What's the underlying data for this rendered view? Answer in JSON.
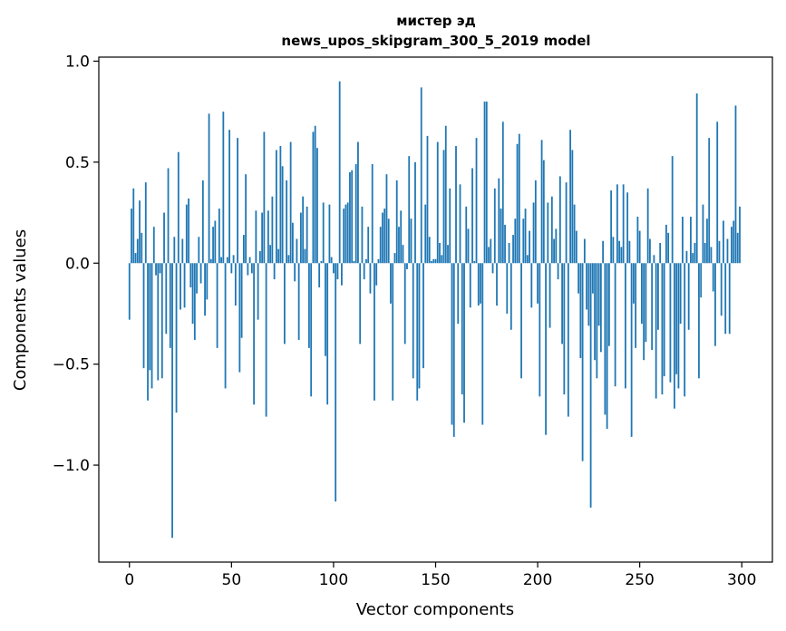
{
  "chart_data": {
    "type": "bar",
    "title": "мистер эд",
    "subtitle": "news_upos_skipgram_300_5_2019 model",
    "xlabel": "Vector components",
    "ylabel": "Components values",
    "xlim": [
      -15,
      315
    ],
    "ylim": [
      -1.48,
      1.02
    ],
    "xticks": [
      0,
      50,
      100,
      150,
      200,
      250,
      300
    ],
    "xtick_labels": [
      "0",
      "50",
      "100",
      "150",
      "200",
      "250",
      "300"
    ],
    "yticks": [
      -1.0,
      -0.5,
      0.0,
      0.5,
      1.0
    ],
    "ytick_labels": [
      "−1.0",
      "−0.5",
      "0.0",
      "0.5",
      "1.0"
    ],
    "grid": false,
    "color": "#1f77b4",
    "x": [
      0,
      1,
      2,
      3,
      4,
      5,
      6,
      7,
      8,
      9,
      10,
      11,
      12,
      13,
      14,
      15,
      16,
      17,
      18,
      19,
      20,
      21,
      22,
      23,
      24,
      25,
      26,
      27,
      28,
      29,
      30,
      31,
      32,
      33,
      34,
      35,
      36,
      37,
      38,
      39,
      40,
      41,
      42,
      43,
      44,
      45,
      46,
      47,
      48,
      49,
      50,
      51,
      52,
      53,
      54,
      55,
      56,
      57,
      58,
      59,
      60,
      61,
      62,
      63,
      64,
      65,
      66,
      67,
      68,
      69,
      70,
      71,
      72,
      73,
      74,
      75,
      76,
      77,
      78,
      79,
      80,
      81,
      82,
      83,
      84,
      85,
      86,
      87,
      88,
      89,
      90,
      91,
      92,
      93,
      94,
      95,
      96,
      97,
      98,
      99,
      100,
      101,
      102,
      103,
      104,
      105,
      106,
      107,
      108,
      109,
      110,
      111,
      112,
      113,
      114,
      115,
      116,
      117,
      118,
      119,
      120,
      121,
      122,
      123,
      124,
      125,
      126,
      127,
      128,
      129,
      130,
      131,
      132,
      133,
      134,
      135,
      136,
      137,
      138,
      139,
      140,
      141,
      142,
      143,
      144,
      145,
      146,
      147,
      148,
      149,
      150,
      151,
      152,
      153,
      154,
      155,
      156,
      157,
      158,
      159,
      160,
      161,
      162,
      163,
      164,
      165,
      166,
      167,
      168,
      169,
      170,
      171,
      172,
      173,
      174,
      175,
      176,
      177,
      178,
      179,
      180,
      181,
      182,
      183,
      184,
      185,
      186,
      187,
      188,
      189,
      190,
      191,
      192,
      193,
      194,
      195,
      196,
      197,
      198,
      199,
      200,
      201,
      202,
      203,
      204,
      205,
      206,
      207,
      208,
      209,
      210,
      211,
      212,
      213,
      214,
      215,
      216,
      217,
      218,
      219,
      220,
      221,
      222,
      223,
      224,
      225,
      226,
      227,
      228,
      229,
      230,
      231,
      232,
      233,
      234,
      235,
      236,
      237,
      238,
      239,
      240,
      241,
      242,
      243,
      244,
      245,
      246,
      247,
      248,
      249,
      250,
      251,
      252,
      253,
      254,
      255,
      256,
      257,
      258,
      259,
      260,
      261,
      262,
      263,
      264,
      265,
      266,
      267,
      268,
      269,
      270,
      271,
      272,
      273,
      274,
      275,
      276,
      277,
      278,
      279,
      280,
      281,
      282,
      283,
      284,
      285,
      286,
      287,
      288,
      289,
      290,
      291,
      292,
      293,
      294,
      295,
      296,
      297,
      298,
      299
    ],
    "values": [
      -0.28,
      0.27,
      0.37,
      0.05,
      0.12,
      0.31,
      0.15,
      -0.52,
      0.4,
      -0.68,
      -0.53,
      -0.62,
      0.18,
      -0.06,
      -0.58,
      -0.05,
      -0.57,
      0.25,
      -0.35,
      0.47,
      -0.42,
      -1.36,
      0.13,
      -0.74,
      0.55,
      -0.23,
      0.12,
      -0.22,
      0.29,
      0.32,
      -0.12,
      -0.3,
      -0.38,
      -0.15,
      0.13,
      -0.1,
      0.41,
      -0.26,
      -0.18,
      0.74,
      0.02,
      0.18,
      0.21,
      -0.42,
      0.27,
      0.03,
      0.75,
      -0.62,
      0.03,
      0.66,
      -0.05,
      0.04,
      -0.21,
      0.62,
      -0.54,
      -0.37,
      0.14,
      0.44,
      -0.06,
      0.03,
      -0.05,
      -0.7,
      0.26,
      -0.28,
      0.06,
      0.25,
      0.65,
      -0.76,
      0.26,
      0.09,
      0.33,
      -0.08,
      0.56,
      0.07,
      0.58,
      0.48,
      -0.4,
      0.41,
      0.04,
      0.6,
      0.2,
      -0.09,
      0.12,
      -0.38,
      0.25,
      0.33,
      0.07,
      0.28,
      -0.42,
      -0.66,
      0.65,
      0.68,
      0.57,
      -0.12,
      0.01,
      0.3,
      -0.46,
      -0.7,
      0.29,
      0.03,
      -0.05,
      -1.18,
      -0.08,
      0.9,
      -0.11,
      0.27,
      0.29,
      0.3,
      0.45,
      0.46,
      0.01,
      0.49,
      0.6,
      -0.4,
      0.28,
      -0.08,
      0.02,
      0.18,
      -0.15,
      0.49,
      -0.68,
      -0.11,
      0.02,
      0.18,
      0.25,
      0.27,
      0.44,
      0.22,
      -0.2,
      -0.68,
      0.05,
      0.41,
      0.18,
      0.26,
      0.09,
      -0.4,
      -0.03,
      0.53,
      0.22,
      -0.57,
      0.5,
      -0.68,
      -0.62,
      0.87,
      -0.52,
      0.29,
      0.63,
      0.13,
      0.01,
      0.02,
      0.02,
      0.6,
      0.1,
      0.04,
      0.56,
      0.68,
      0.09,
      0.37,
      -0.8,
      -0.86,
      0.58,
      -0.3,
      0.39,
      -0.65,
      -0.79,
      0.28,
      0.17,
      -0.22,
      0.47,
      0.01,
      0.62,
      -0.21,
      -0.2,
      -0.8,
      0.8,
      0.8,
      0.08,
      0.12,
      -0.05,
      0.37,
      -0.21,
      0.42,
      0.27,
      0.7,
      0.19,
      -0.25,
      0.1,
      -0.33,
      0.14,
      0.22,
      0.59,
      0.64,
      -0.57,
      0.22,
      0.27,
      0.04,
      0.16,
      -0.22,
      0.3,
      0.41,
      -0.2,
      -0.66,
      0.61,
      0.51,
      -0.85,
      0.3,
      -0.32,
      0.33,
      0.12,
      0.17,
      -0.08,
      0.43,
      -0.4,
      -0.65,
      0.4,
      -0.76,
      0.66,
      0.56,
      0.29,
      0.16,
      -0.15,
      -0.47,
      -0.98,
      0.12,
      -0.23,
      -0.31,
      -1.21,
      -0.15,
      -0.48,
      -0.57,
      -0.31,
      -0.44,
      0.11,
      -0.75,
      -0.82,
      -0.41,
      0.36,
      0.13,
      -0.61,
      0.39,
      0.11,
      0.08,
      0.39,
      -0.62,
      0.35,
      0.11,
      -0.86,
      -0.2,
      -0.42,
      0.23,
      0.16,
      -0.3,
      -0.48,
      -0.39,
      0.37,
      0.12,
      -0.43,
      0.04,
      -0.67,
      -0.33,
      0.1,
      -0.65,
      -0.56,
      0.19,
      0.15,
      -0.59,
      0.53,
      -0.72,
      -0.55,
      -0.62,
      -0.3,
      0.23,
      -0.66,
      0.06,
      -0.33,
      0.23,
      0.05,
      0.1,
      0.84,
      -0.57,
      -0.17,
      0.29,
      0.1,
      0.22,
      0.62,
      0.08,
      -0.14,
      -0.41,
      0.7,
      0.11,
      -0.26,
      0.21,
      -0.35,
      0.12,
      -0.35,
      0.18,
      0.21,
      0.78,
      0.15,
      0.28
    ]
  }
}
